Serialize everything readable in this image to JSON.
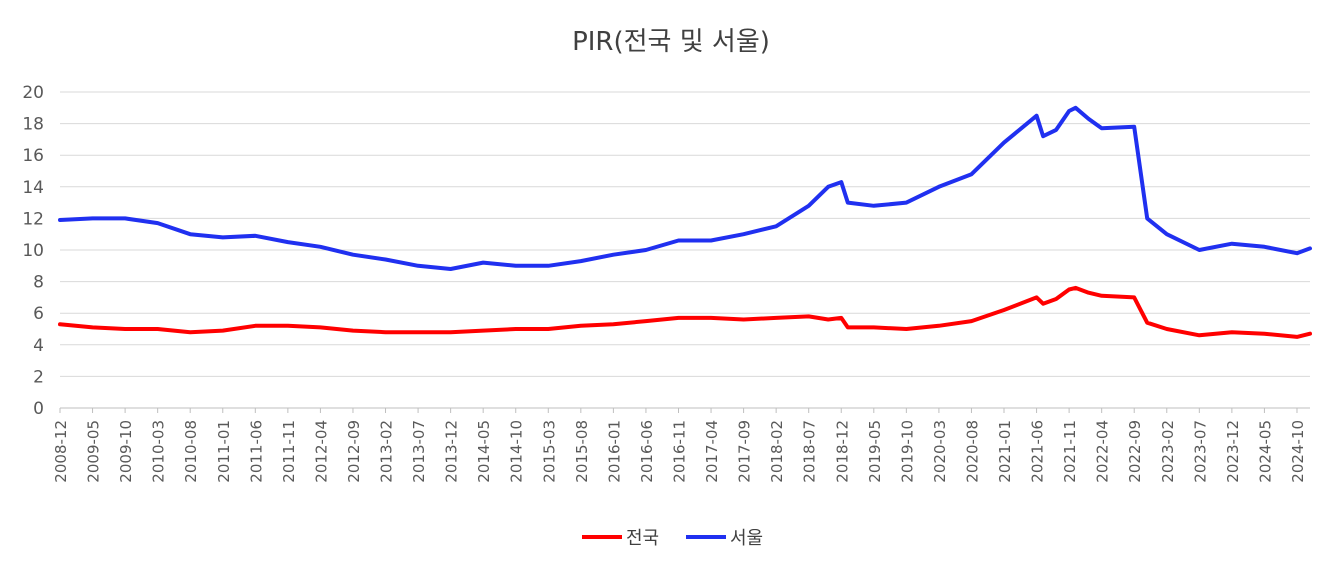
{
  "chart_data": {
    "type": "line",
    "title": "PIR(전국 및 서울)",
    "xlabel": "",
    "ylabel": "",
    "ylim": [
      0,
      20
    ],
    "yticks": [
      "0",
      "2",
      "4",
      "6",
      "8",
      "10",
      "12",
      "14",
      "16",
      "18",
      "20"
    ],
    "grid": true,
    "legend_position": "bottom",
    "x_tick_labels": [
      "2008-12",
      "2009-05",
      "2009-10",
      "2010-03",
      "2010-08",
      "2011-01",
      "2011-06",
      "2011-11",
      "2012-04",
      "2012-09",
      "2013-02",
      "2013-07",
      "2013-12",
      "2014-05",
      "2014-10",
      "2015-03",
      "2015-08",
      "2016-01",
      "2016-06",
      "2016-11",
      "2017-04",
      "2017-09",
      "2018-02",
      "2018-07",
      "2018-12",
      "2019-05",
      "2019-10",
      "2020-03",
      "2020-08",
      "2021-01",
      "2021-06",
      "2021-11",
      "2022-04",
      "2022-09",
      "2023-02",
      "2023-07",
      "2023-12",
      "2024-05",
      "2024-10"
    ],
    "x": [
      "2008-12",
      "2009-05",
      "2009-10",
      "2010-03",
      "2010-08",
      "2011-01",
      "2011-06",
      "2011-11",
      "2012-04",
      "2012-09",
      "2013-02",
      "2013-07",
      "2013-12",
      "2014-05",
      "2014-10",
      "2015-03",
      "2015-08",
      "2016-01",
      "2016-06",
      "2016-11",
      "2017-04",
      "2017-09",
      "2018-02",
      "2018-07",
      "2018-10",
      "2018-12",
      "2019-01",
      "2019-05",
      "2019-10",
      "2020-03",
      "2020-08",
      "2021-01",
      "2021-06",
      "2021-07",
      "2021-09",
      "2021-11",
      "2021-12",
      "2022-02",
      "2022-04",
      "2022-09",
      "2022-11",
      "2023-02",
      "2023-07",
      "2023-12",
      "2024-05",
      "2024-10",
      "2024-12"
    ],
    "series": [
      {
        "name": "전국",
        "color": "#ff0000",
        "values": [
          5.3,
          5.1,
          5.0,
          5.0,
          4.8,
          4.9,
          5.2,
          5.2,
          5.1,
          4.9,
          4.8,
          4.8,
          4.8,
          4.9,
          5.0,
          5.0,
          5.2,
          5.3,
          5.5,
          5.7,
          5.7,
          5.6,
          5.7,
          5.8,
          5.6,
          5.7,
          5.1,
          5.1,
          5.0,
          5.2,
          5.5,
          6.2,
          7.0,
          6.6,
          6.9,
          7.5,
          7.6,
          7.3,
          7.1,
          7.0,
          5.4,
          5.0,
          4.6,
          4.8,
          4.7,
          4.5,
          4.7
        ]
      },
      {
        "name": "서울",
        "color": "#2030f0",
        "values": [
          11.9,
          12.0,
          12.0,
          11.7,
          11.0,
          10.8,
          10.9,
          10.5,
          10.2,
          9.7,
          9.4,
          9.0,
          8.8,
          9.2,
          9.0,
          9.0,
          9.3,
          9.7,
          10.0,
          10.6,
          10.6,
          11.0,
          11.5,
          12.8,
          14.0,
          14.3,
          13.0,
          12.8,
          13.0,
          14.0,
          14.8,
          16.8,
          18.5,
          17.2,
          17.6,
          18.8,
          19.0,
          18.3,
          17.7,
          17.8,
          12.0,
          11.0,
          10.0,
          10.4,
          10.2,
          9.8,
          10.1
        ]
      }
    ]
  }
}
